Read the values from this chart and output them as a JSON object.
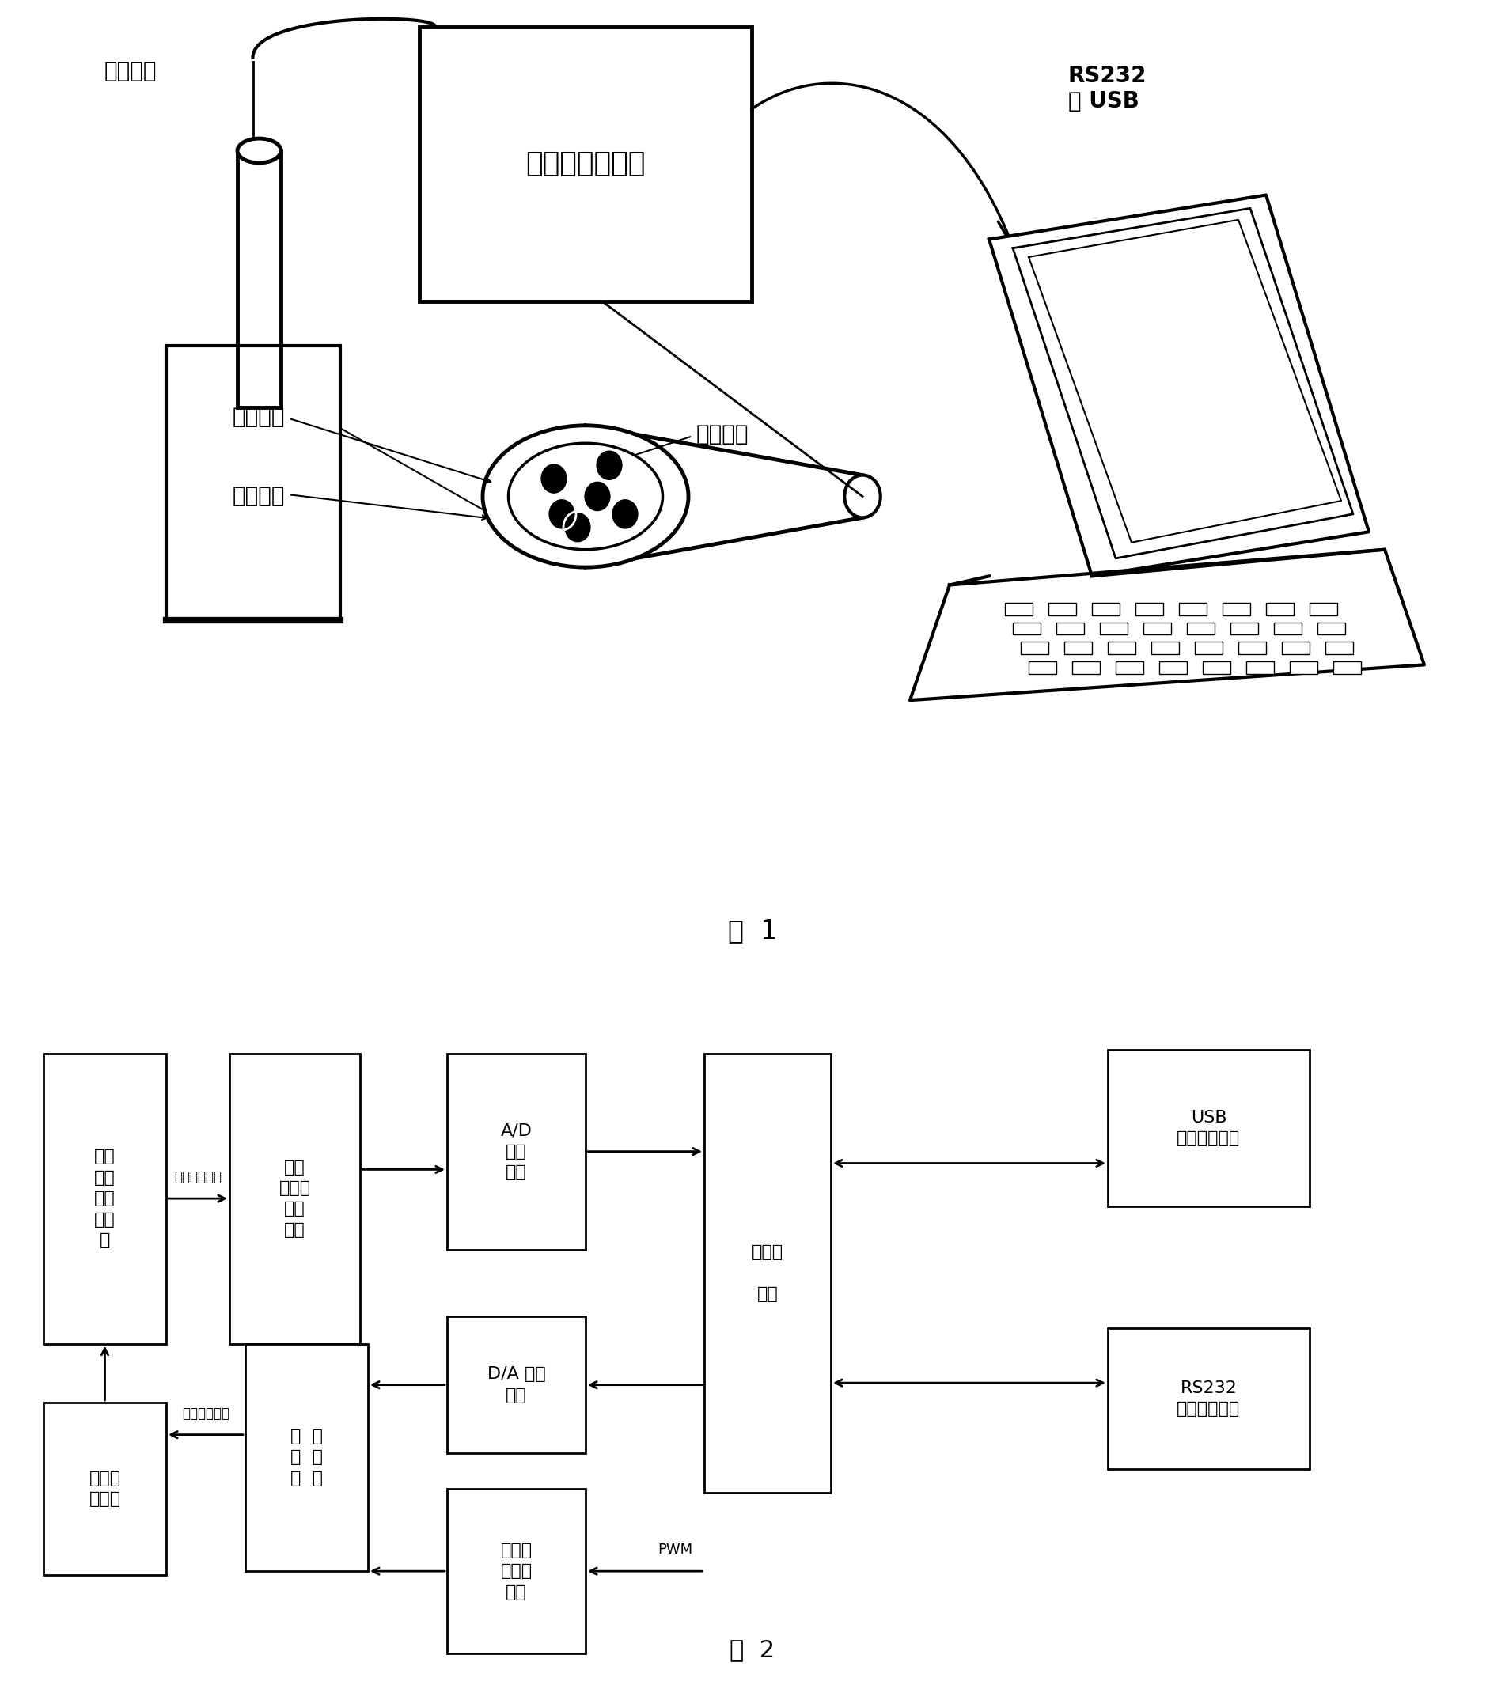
{
  "fig1_caption": "图  1",
  "fig2_caption": "图  2",
  "background_color": "#ffffff",
  "fig1_labels": {
    "electrode_array": "电极阵列",
    "scanner": "宽频脉冲扫描仪",
    "rs232_usb": "RS232\n或 USB",
    "ref_electrode": "参比电极",
    "aux_electrode": "辅助电极",
    "work_electrode": "工作电极"
  },
  "fig2_caption_fontsize": 20,
  "fig1_caption_fontsize": 20
}
